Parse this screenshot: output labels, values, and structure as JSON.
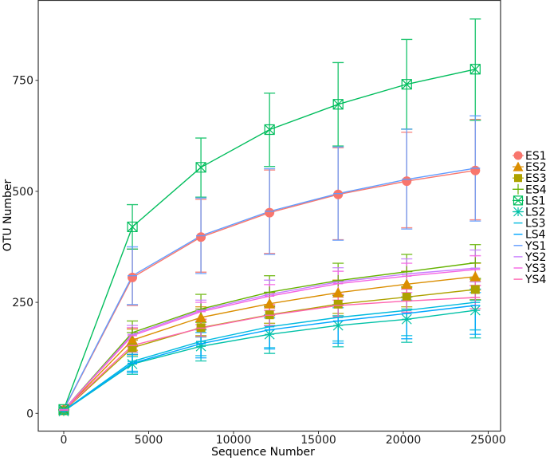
{
  "chart_data": {
    "type": "line",
    "title": "",
    "xlabel": "Sequence Number",
    "ylabel": "OTU Number",
    "xlim": [
      -1500,
      25800
    ],
    "ylim": [
      -40,
      930
    ],
    "x_ticks": [
      0,
      5000,
      10000,
      15000,
      20000,
      25000
    ],
    "x_tick_labels": [
      "0",
      "5000",
      "10000",
      "15000",
      "20000",
      "25000"
    ],
    "y_ticks": [
      0,
      250,
      500,
      750
    ],
    "y_tick_labels": [
      "0",
      "250",
      "500",
      "750"
    ],
    "grid": false,
    "legend_position": "right",
    "error_bars": true,
    "x": [
      0,
      4040,
      8080,
      12120,
      16160,
      20200,
      24240
    ],
    "series": [
      {
        "name": "ES1",
        "color": "#F8766D",
        "marker": "circle",
        "values": [
          8,
          306,
          397,
          452,
          493,
          523,
          547
        ],
        "err_low": [
          8,
          243,
          318,
          360,
          391,
          418,
          436
        ],
        "err_high": [
          8,
          370,
          482,
          548,
          598,
          633,
          662
        ]
      },
      {
        "name": "ES2",
        "color": "#DB8E00",
        "marker": "triangle",
        "values": [
          7,
          165,
          216,
          247,
          272,
          291,
          308
        ],
        "err_low": [
          7,
          142,
          190,
          220,
          243,
          262,
          278
        ],
        "err_high": [
          7,
          190,
          240,
          272,
          300,
          320,
          338
        ]
      },
      {
        "name": "ES3",
        "color": "#AEA200",
        "marker": "square",
        "values": [
          6,
          148,
          193,
          222,
          246,
          262,
          279
        ],
        "err_low": [
          6,
          132,
          175,
          203,
          225,
          240,
          256
        ],
        "err_high": [
          6,
          165,
          212,
          242,
          266,
          284,
          302
        ]
      },
      {
        "name": "ES4",
        "color": "#64B200",
        "marker": "plus",
        "values": [
          8,
          182,
          235,
          273,
          299,
          319,
          339
        ],
        "err_low": [
          8,
          152,
          205,
          240,
          266,
          285,
          304
        ],
        "err_high": [
          8,
          208,
          268,
          310,
          338,
          358,
          380
        ]
      },
      {
        "name": "LS1",
        "color": "#00BD5C",
        "marker": "boxx",
        "values": [
          9,
          420,
          554,
          639,
          696,
          741,
          775
        ],
        "err_low": [
          9,
          370,
          487,
          556,
          602,
          640,
          660
        ],
        "err_high": [
          9,
          470,
          620,
          721,
          790,
          842,
          888
        ]
      },
      {
        "name": "LS2",
        "color": "#00C1A7",
        "marker": "asterisk",
        "values": [
          5,
          111,
          151,
          178,
          198,
          212,
          232
        ],
        "err_low": [
          5,
          88,
          118,
          135,
          150,
          160,
          170
        ],
        "err_high": [
          5,
          128,
          172,
          198,
          220,
          235,
          255
        ]
      },
      {
        "name": "LS3",
        "color": "#00BADE",
        "marker": "dash",
        "values": [
          6,
          117,
          162,
          195,
          216,
          232,
          250
        ],
        "err_low": [
          6,
          95,
          130,
          148,
          163,
          175,
          188
        ],
        "err_high": [
          6,
          138,
          188,
          222,
          245,
          262,
          280
        ]
      },
      {
        "name": "LS4",
        "color": "#00A6FF",
        "marker": "dash",
        "values": [
          6,
          113,
          157,
          188,
          208,
          225,
          243
        ],
        "err_low": [
          6,
          92,
          125,
          145,
          158,
          168,
          178
        ],
        "err_high": [
          6,
          133,
          182,
          215,
          238,
          255,
          272
        ]
      },
      {
        "name": "YS1",
        "color": "#619CFF",
        "marker": "dash",
        "values": [
          9,
          310,
          400,
          455,
          495,
          527,
          552
        ],
        "err_low": [
          9,
          245,
          315,
          358,
          390,
          415,
          433
        ],
        "err_high": [
          9,
          375,
          485,
          551,
          600,
          640,
          670
        ]
      },
      {
        "name": "YS2",
        "color": "#C77CFF",
        "marker": "dash",
        "values": [
          8,
          178,
          232,
          268,
          296,
          314,
          327
        ],
        "err_low": [
          8,
          155,
          208,
          238,
          262,
          280,
          296
        ],
        "err_high": [
          8,
          198,
          255,
          300,
          328,
          348,
          368
        ]
      },
      {
        "name": "YS3",
        "color": "#F564E3",
        "marker": "dash",
        "values": [
          8,
          175,
          229,
          264,
          292,
          309,
          324
        ],
        "err_low": [
          8,
          150,
          200,
          232,
          255,
          272,
          288
        ],
        "err_high": [
          8,
          193,
          250,
          290,
          320,
          338,
          355
        ]
      },
      {
        "name": "YS4",
        "color": "#FF64B0",
        "marker": "dash",
        "values": [
          7,
          153,
          192,
          221,
          243,
          253,
          261
        ],
        "err_low": [
          7,
          138,
          173,
          198,
          218,
          228,
          236
        ],
        "err_high": [
          7,
          168,
          212,
          245,
          268,
          280,
          288
        ]
      }
    ]
  },
  "legend": {
    "items": [
      "ES1",
      "ES2",
      "ES3",
      "ES4",
      "LS1",
      "LS2",
      "LS3",
      "LS4",
      "YS1",
      "YS2",
      "YS3",
      "YS4"
    ]
  },
  "axes": {
    "x_title": "Sequence Number",
    "y_title": "OTU Number"
  }
}
